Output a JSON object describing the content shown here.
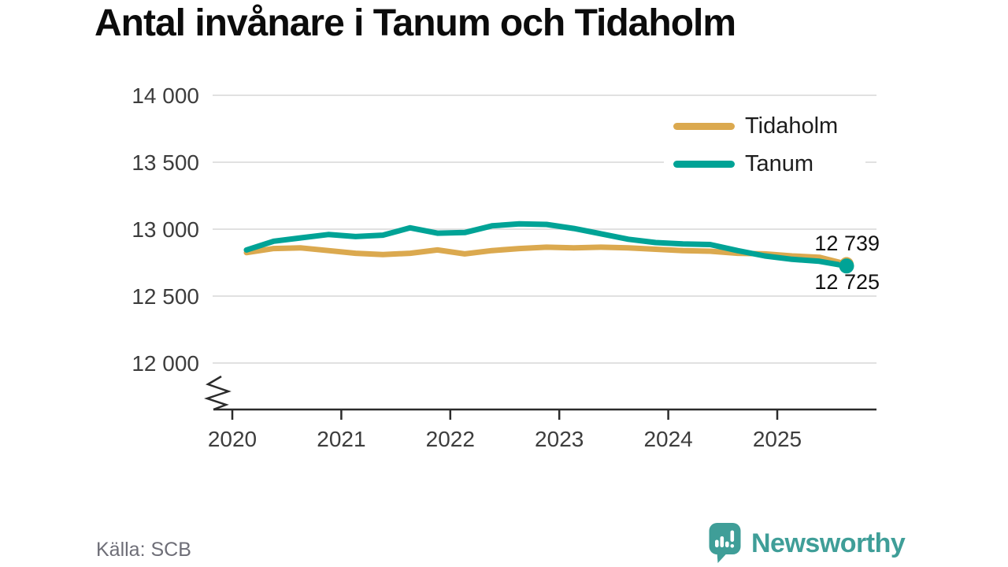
{
  "title": "Antal invånare i Tanum och Tidaholm",
  "source": "Källa: SCB",
  "branding": {
    "name": "Newsworthy"
  },
  "colors": {
    "tidaholm": "#dba94f",
    "tanum": "#00a396",
    "grid": "#e1e1e1",
    "axis": "#2b2b2b",
    "tick_label": "#3d3d3d",
    "title": "#0c0c0c",
    "source_text": "#6e6e77",
    "brand_teal": "#3f9e98"
  },
  "chart_data": {
    "type": "line",
    "title": "Antal invånare i Tanum och Tidaholm",
    "xlabel": "",
    "ylabel": "",
    "grid": "horizontal",
    "legend_position": "top-right",
    "categories": [
      "2020 K1",
      "2020 K2",
      "2020 K3",
      "2020 K4",
      "2021 K1",
      "2021 K2",
      "2021 K3",
      "2021 K4",
      "2022 K1",
      "2022 K2",
      "2022 K3",
      "2022 K4",
      "2023 K1",
      "2023 K2",
      "2023 K3",
      "2023 K4",
      "2024 K1",
      "2024 K2",
      "2024 K3",
      "2024 K4",
      "2025 K1",
      "2025 K2",
      "2025 K3"
    ],
    "series": [
      {
        "name": "Tidaholm",
        "color": "#dba94f",
        "values": [
          12825,
          12855,
          12860,
          12840,
          12820,
          12810,
          12820,
          12845,
          12815,
          12840,
          12855,
          12865,
          12860,
          12865,
          12860,
          12850,
          12840,
          12835,
          12820,
          12815,
          12800,
          12790,
          12739
        ]
      },
      {
        "name": "Tanum",
        "color": "#00a396",
        "values": [
          12845,
          12910,
          12935,
          12960,
          12945,
          12955,
          13010,
          12970,
          12975,
          13025,
          13040,
          13035,
          13005,
          12965,
          12925,
          12900,
          12890,
          12885,
          12840,
          12800,
          12775,
          12760,
          12725
        ]
      }
    ],
    "y_axis": {
      "range_shown": [
        12000,
        14000
      ],
      "axis_break": true,
      "ticks": [
        {
          "label": "14 000",
          "value": 14000
        },
        {
          "label": "13 500",
          "value": 13500
        },
        {
          "label": "13 000",
          "value": 13000
        },
        {
          "label": "12 500",
          "value": 12500
        },
        {
          "label": "12 000",
          "value": 12000
        }
      ]
    },
    "x_axis": {
      "ticks": [
        {
          "label": "2020",
          "year": 2020
        },
        {
          "label": "2021",
          "year": 2021
        },
        {
          "label": "2022",
          "year": 2022
        },
        {
          "label": "2023",
          "year": 2023
        },
        {
          "label": "2024",
          "year": 2024
        },
        {
          "label": "2025",
          "year": 2025
        }
      ]
    },
    "end_labels": [
      {
        "series": "Tidaholm",
        "label": "12 739",
        "value": 12739
      },
      {
        "series": "Tanum",
        "label": "12 725",
        "value": 12725
      }
    ]
  }
}
